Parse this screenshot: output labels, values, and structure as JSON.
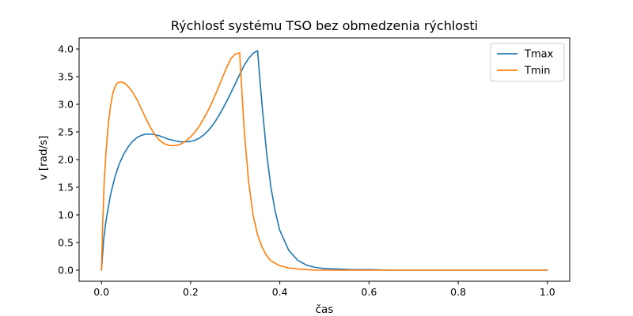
{
  "chart_data": {
    "type": "line",
    "title": "Rýchlosť systému TSO bez obmedzenia rýchlosti",
    "xlabel": "čas",
    "ylabel": "v [rad/s]",
    "xlim": [
      -0.05,
      1.05
    ],
    "ylim": [
      -0.2,
      4.2
    ],
    "xticks": [
      0.0,
      0.2,
      0.4,
      0.6,
      0.8,
      1.0
    ],
    "xtick_labels": [
      "0.0",
      "0.2",
      "0.4",
      "0.6",
      "0.8",
      "1.0"
    ],
    "yticks": [
      0.0,
      0.5,
      1.0,
      1.5,
      2.0,
      2.5,
      3.0,
      3.5,
      4.0
    ],
    "ytick_labels": [
      "0.0",
      "0.5",
      "1.0",
      "1.5",
      "2.0",
      "2.5",
      "3.0",
      "3.5",
      "4.0"
    ],
    "grid": false,
    "legend_position": "top-right",
    "series": [
      {
        "name": "Tmax",
        "color": "#1f77b4",
        "x": [
          0.0,
          0.005,
          0.01,
          0.02,
          0.03,
          0.04,
          0.05,
          0.06,
          0.07,
          0.08,
          0.09,
          0.1,
          0.11,
          0.12,
          0.13,
          0.14,
          0.15,
          0.16,
          0.17,
          0.18,
          0.19,
          0.2,
          0.21,
          0.22,
          0.23,
          0.24,
          0.25,
          0.26,
          0.27,
          0.28,
          0.29,
          0.3,
          0.31,
          0.32,
          0.33,
          0.34,
          0.35,
          0.36,
          0.37,
          0.38,
          0.39,
          0.4,
          0.42,
          0.44,
          0.46,
          0.48,
          0.5,
          0.53,
          0.56,
          0.6,
          0.65,
          0.7,
          0.8,
          0.9,
          1.0
        ],
        "y": [
          0.0,
          0.55,
          0.88,
          1.35,
          1.68,
          1.92,
          2.1,
          2.23,
          2.33,
          2.4,
          2.44,
          2.46,
          2.46,
          2.45,
          2.43,
          2.4,
          2.37,
          2.35,
          2.33,
          2.32,
          2.32,
          2.33,
          2.35,
          2.39,
          2.45,
          2.53,
          2.63,
          2.75,
          2.89,
          3.04,
          3.2,
          3.37,
          3.54,
          3.7,
          3.83,
          3.92,
          3.97,
          3.0,
          2.15,
          1.5,
          1.05,
          0.72,
          0.36,
          0.18,
          0.09,
          0.05,
          0.03,
          0.02,
          0.01,
          0.01,
          0.0,
          0.0,
          0.0,
          0.0,
          0.0
        ]
      },
      {
        "name": "Tmin",
        "color": "#ff7f0e",
        "x": [
          0.0,
          0.003,
          0.006,
          0.01,
          0.015,
          0.02,
          0.025,
          0.03,
          0.035,
          0.04,
          0.045,
          0.05,
          0.055,
          0.06,
          0.07,
          0.08,
          0.09,
          0.1,
          0.11,
          0.12,
          0.13,
          0.14,
          0.15,
          0.16,
          0.17,
          0.175,
          0.18,
          0.19,
          0.2,
          0.21,
          0.22,
          0.23,
          0.24,
          0.25,
          0.26,
          0.27,
          0.28,
          0.29,
          0.3,
          0.31,
          0.32,
          0.33,
          0.34,
          0.35,
          0.36,
          0.37,
          0.38,
          0.4,
          0.42,
          0.44,
          0.46,
          0.48,
          0.5,
          0.55,
          0.6,
          0.7,
          0.8,
          0.9,
          1.0
        ],
        "y": [
          0.0,
          0.9,
          1.55,
          2.1,
          2.6,
          2.95,
          3.18,
          3.31,
          3.38,
          3.4,
          3.4,
          3.39,
          3.36,
          3.32,
          3.22,
          3.08,
          2.91,
          2.74,
          2.58,
          2.45,
          2.35,
          2.29,
          2.26,
          2.25,
          2.26,
          2.27,
          2.29,
          2.34,
          2.41,
          2.5,
          2.61,
          2.75,
          2.9,
          3.07,
          3.26,
          3.46,
          3.65,
          3.82,
          3.91,
          3.93,
          2.55,
          1.6,
          1.0,
          0.64,
          0.42,
          0.27,
          0.17,
          0.08,
          0.04,
          0.02,
          0.01,
          0.0,
          0.0,
          0.0,
          0.0,
          0.0,
          0.0,
          0.0,
          0.0
        ]
      }
    ]
  }
}
